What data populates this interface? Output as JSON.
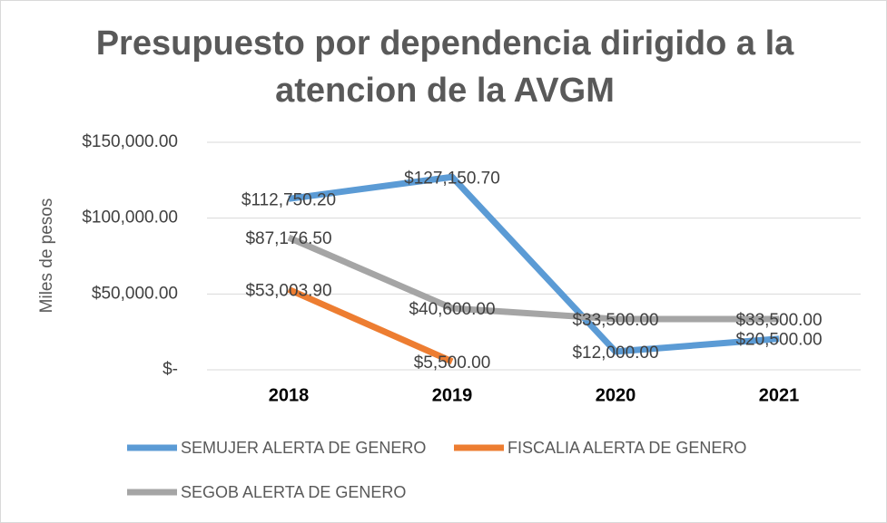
{
  "chart_data": {
    "type": "line",
    "title": "Presupuesto por dependencia dirigido a la atencion de la AVGM",
    "y_label": "Miles de pesos",
    "categories": [
      "2018",
      "2019",
      "2020",
      "2021"
    ],
    "series": [
      {
        "name": "SEMUJER ALERTA DE GENERO",
        "color": "#5b9bd5",
        "values": [
          112750.2,
          127150.7,
          12000,
          20500
        ],
        "value_labels": [
          "$112,750.20",
          "$127,150.70",
          "$12,000.00",
          "$20,500.00"
        ]
      },
      {
        "name": "FISCALIA ALERTA DE GENERO",
        "color": "#ed7d31",
        "values": [
          53003.9,
          5500,
          null,
          null
        ],
        "value_labels": [
          "$53,003.90",
          "$5,500.00",
          null,
          null
        ]
      },
      {
        "name": "SEGOB ALERTA DE GENERO",
        "color": "#a5a5a5",
        "values": [
          87176.5,
          40600,
          33500,
          33500
        ],
        "value_labels": [
          "$87,176.50",
          "$40,600.00",
          "$33,500.00",
          "$33,500.00"
        ]
      }
    ],
    "ylim": [
      0,
      150000
    ],
    "yticks": [
      {
        "value": 0,
        "label": "$-"
      },
      {
        "value": 50000,
        "label": "$50,000.00"
      },
      {
        "value": 100000,
        "label": "$100,000.00"
      },
      {
        "value": 150000,
        "label": "$150,000.00"
      }
    ],
    "grid": true,
    "legend": "bottom"
  }
}
